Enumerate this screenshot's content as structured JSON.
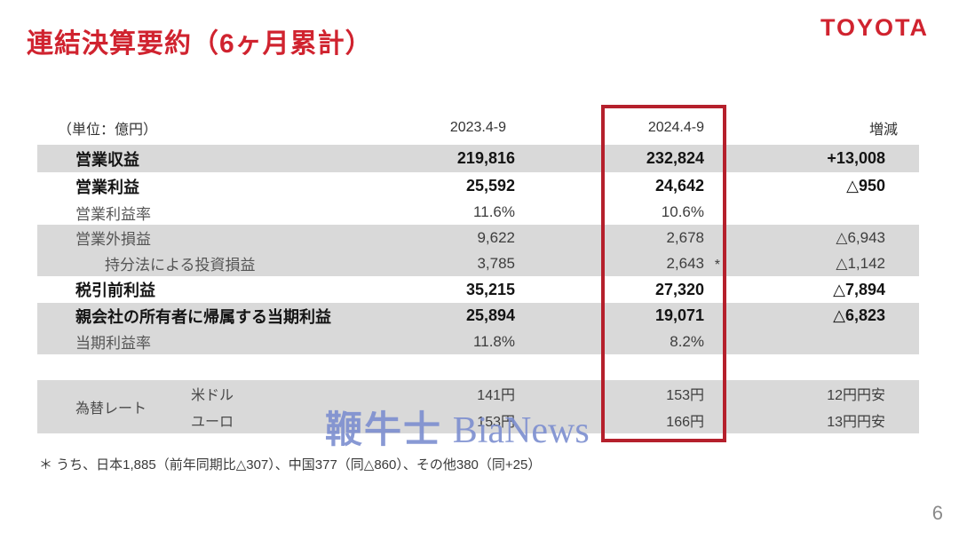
{
  "slide": {
    "title": "連結決算要約（6ヶ月累計）",
    "logo": "TOYOTA",
    "page_number": "6",
    "footnote": "＊ うち、日本1,885（前年同期比△307）、中国377（同△860）、その他380（同+25）",
    "watermark": {
      "cjk": "鞭牛士",
      "latin": "BiaNews"
    }
  },
  "table": {
    "unit_label": "（単位：億円）",
    "columns": {
      "prev": "2023.4-9",
      "curr": "2024.4-9",
      "change": "増減"
    },
    "highlighted_column": "2024.4-9",
    "rows": [
      {
        "label": "営業収益",
        "v2023": "219,816",
        "v2024": "232,824",
        "change": "+13,008"
      },
      {
        "label": "営業利益",
        "v2023": "25,592",
        "v2024": "24,642",
        "change": "△950"
      },
      {
        "label": "営業利益率",
        "v2023": "11.6%",
        "v2024": "10.6%",
        "change": ""
      },
      {
        "label": "営業外損益",
        "v2023": "9,622",
        "v2024": "2,678",
        "change": "△6,943"
      },
      {
        "label": "持分法による投資損益",
        "v2023": "3,785",
        "v2024": "2,643",
        "v2024_note": "*",
        "change": "△1,142"
      },
      {
        "label": "税引前利益",
        "v2023": "35,215",
        "v2024": "27,320",
        "change": "△7,894"
      },
      {
        "label": "親会社の所有者に帰属する当期利益",
        "v2023": "25,894",
        "v2024": "19,071",
        "change": "△6,823"
      },
      {
        "label": "当期利益率",
        "v2023": "11.8%",
        "v2024": "8.2%",
        "change": ""
      }
    ],
    "fx": {
      "label": "為替レート",
      "rows": [
        {
          "currency": "米ドル",
          "v2023": "141円",
          "v2024": "153円",
          "change": "12円円安"
        },
        {
          "currency": "ユーロ",
          "v2023": "153円",
          "v2024": "166円",
          "change": "13円円安"
        }
      ]
    }
  },
  "colors": {
    "accent_red": "#d0232f",
    "highlight_box_red": "#b5202c",
    "row_shade_gray": "#d9d9d9",
    "watermark_blue": "#7c8ed0"
  }
}
